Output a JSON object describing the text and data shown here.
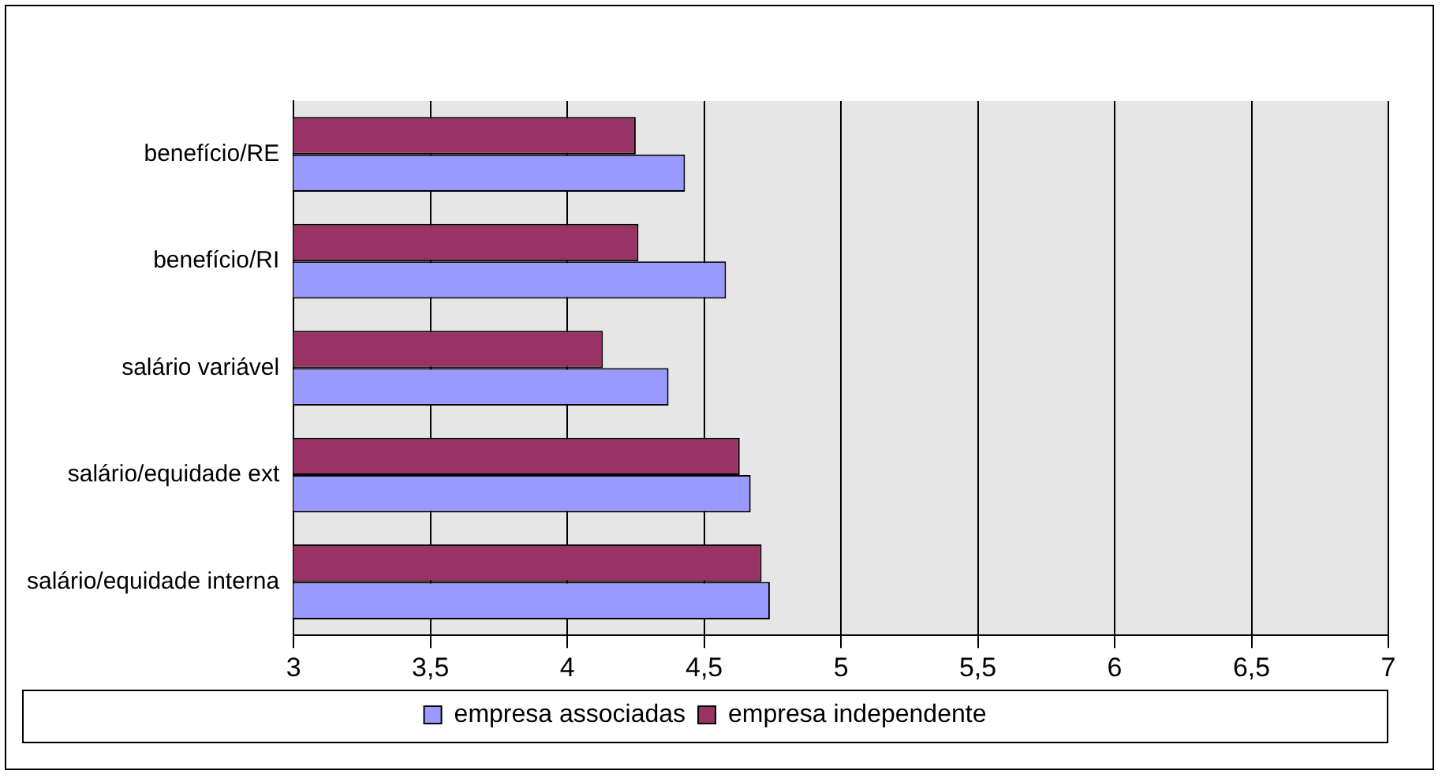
{
  "chart_data": {
    "type": "bar",
    "orientation": "horizontal",
    "categories": [
      "benefício/RE",
      "benefício/RI",
      "salário variável",
      "salário/equidade ext",
      "salário/equidade interna"
    ],
    "series": [
      {
        "name": "empresa associadas",
        "color": "#9999ff",
        "values": [
          4.43,
          4.58,
          4.37,
          4.67,
          4.74
        ]
      },
      {
        "name": "empresa independente",
        "color": "#993366",
        "values": [
          4.25,
          4.26,
          4.13,
          4.63,
          4.71
        ]
      }
    ],
    "xlim": [
      3,
      7
    ],
    "xticks": [
      3,
      {
        "value": 3.5,
        "label": "3,5"
      },
      4,
      {
        "value": 4.5,
        "label": "4,5"
      },
      5,
      {
        "value": 5.5,
        "label": "5,5"
      },
      6,
      {
        "value": 6.5,
        "label": "6,5"
      },
      7
    ],
    "grid": "x",
    "legend": "bottom"
  }
}
